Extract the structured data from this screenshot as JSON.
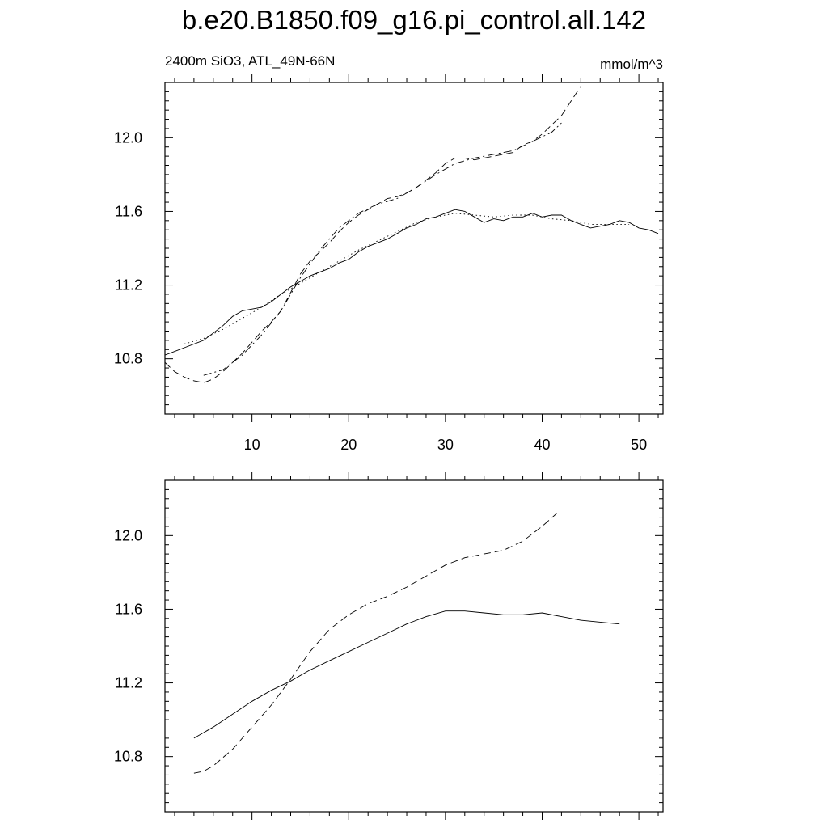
{
  "title": "b.e20.B1850.f09_g16.pi_control.all.142",
  "subtitle_left": "2400m SiO3, ATL_49N-66N",
  "subtitle_right": "mmol/m^3",
  "chart_data": [
    {
      "type": "line",
      "xlim": [
        1,
        52.5
      ],
      "ylim": [
        10.5,
        12.3
      ],
      "x_ticks": [
        10,
        20,
        30,
        40,
        50
      ],
      "x_tick_labels": [
        "10",
        "20",
        "30",
        "40",
        "50"
      ],
      "y_ticks": [
        10.8,
        11.2,
        11.6,
        12.0
      ],
      "y_tick_labels": [
        "10.8",
        "11.2",
        "11.6",
        "12.0"
      ],
      "grid": false,
      "series": [
        {
          "style": "solid",
          "x": [
            1,
            2,
            3,
            4,
            5,
            6,
            7,
            8,
            9,
            10,
            11,
            12,
            13,
            14,
            15,
            16,
            17,
            18,
            19,
            20,
            21,
            22,
            23,
            24,
            25,
            26,
            27,
            28,
            29,
            30,
            31,
            32,
            33,
            34,
            35,
            36,
            37,
            38,
            39,
            40,
            41,
            42,
            43,
            44,
            45,
            46,
            47,
            48,
            49,
            50,
            51,
            52
          ],
          "values": [
            10.82,
            10.84,
            10.86,
            10.88,
            10.9,
            10.94,
            10.98,
            11.03,
            11.06,
            11.07,
            11.08,
            11.11,
            11.15,
            11.19,
            11.22,
            11.25,
            11.27,
            11.29,
            11.32,
            11.34,
            11.38,
            11.41,
            11.43,
            11.45,
            11.48,
            11.51,
            11.53,
            11.56,
            11.57,
            11.59,
            11.61,
            11.6,
            11.57,
            11.54,
            11.56,
            11.55,
            11.57,
            11.57,
            11.59,
            11.57,
            11.58,
            11.58,
            11.55,
            11.53,
            11.51,
            11.52,
            11.53,
            11.55,
            11.54,
            11.51,
            11.5,
            11.48
          ]
        },
        {
          "style": "dotted",
          "x": [
            3,
            5,
            7,
            9,
            11,
            13,
            15,
            17,
            19,
            21,
            23,
            25,
            27,
            29,
            31,
            33,
            35,
            37,
            39,
            41,
            43,
            45,
            47,
            49
          ],
          "values": [
            10.88,
            10.91,
            10.96,
            11.02,
            11.08,
            11.15,
            11.21,
            11.27,
            11.33,
            11.39,
            11.44,
            11.49,
            11.54,
            11.57,
            11.59,
            11.58,
            11.57,
            11.58,
            11.58,
            11.56,
            11.55,
            11.53,
            11.53,
            11.53
          ]
        },
        {
          "style": "dashed",
          "x": [
            1,
            2,
            3,
            4,
            5,
            6,
            7,
            8,
            9,
            10,
            11,
            12,
            13,
            14,
            15,
            16,
            17,
            18,
            19,
            20,
            21,
            22,
            23,
            24,
            25,
            26,
            27,
            28,
            29,
            30,
            31,
            32,
            33,
            34,
            35,
            36,
            37,
            38,
            39,
            40,
            41,
            42,
            43,
            44
          ],
          "values": [
            10.78,
            10.73,
            10.7,
            10.68,
            10.67,
            10.69,
            10.73,
            10.78,
            10.83,
            10.89,
            10.95,
            11.0,
            11.06,
            11.16,
            11.26,
            11.33,
            11.38,
            11.43,
            11.49,
            11.54,
            11.58,
            11.61,
            11.64,
            11.67,
            11.68,
            11.7,
            11.73,
            11.77,
            11.81,
            11.86,
            11.89,
            11.89,
            11.88,
            11.89,
            11.9,
            11.91,
            11.92,
            11.96,
            11.98,
            12.02,
            12.07,
            12.12,
            12.2,
            12.28
          ]
        },
        {
          "style": "dashdot",
          "x": [
            5,
            7,
            9,
            11,
            13,
            15,
            17,
            19,
            21,
            23,
            25,
            27,
            29,
            31,
            33,
            35,
            37,
            39,
            41,
            42
          ],
          "values": [
            10.71,
            10.74,
            10.82,
            10.93,
            11.06,
            11.24,
            11.39,
            11.51,
            11.59,
            11.64,
            11.67,
            11.73,
            11.8,
            11.86,
            11.89,
            11.91,
            11.93,
            11.98,
            12.03,
            12.08
          ]
        }
      ]
    },
    {
      "type": "line",
      "xlim": [
        1,
        52.5
      ],
      "ylim": [
        10.5,
        12.3
      ],
      "x_ticks": [
        10,
        20,
        30,
        40,
        50
      ],
      "y_ticks": [
        10.8,
        11.2,
        11.6,
        12.0
      ],
      "y_tick_labels": [
        "10.8",
        "11.2",
        "11.6",
        "12.0"
      ],
      "grid": false,
      "series": [
        {
          "style": "solid",
          "x": [
            4,
            6,
            8,
            10,
            12,
            14,
            16,
            18,
            20,
            22,
            24,
            26,
            28,
            30,
            32,
            34,
            36,
            38,
            40,
            42,
            44,
            46,
            48
          ],
          "values": [
            10.9,
            10.96,
            11.03,
            11.1,
            11.16,
            11.21,
            11.27,
            11.32,
            11.37,
            11.42,
            11.47,
            11.52,
            11.56,
            11.59,
            11.59,
            11.58,
            11.57,
            11.57,
            11.58,
            11.56,
            11.54,
            11.53,
            11.52
          ]
        },
        {
          "style": "dashed",
          "x": [
            4,
            5,
            6,
            8,
            10,
            12,
            14,
            16,
            18,
            20,
            22,
            24,
            26,
            28,
            30,
            32,
            34,
            36,
            38,
            40,
            41.5
          ],
          "values": [
            10.71,
            10.72,
            10.75,
            10.84,
            10.96,
            11.08,
            11.22,
            11.37,
            11.49,
            11.57,
            11.63,
            11.67,
            11.72,
            11.78,
            11.84,
            11.88,
            11.9,
            11.92,
            11.97,
            12.05,
            12.12
          ]
        }
      ]
    }
  ]
}
